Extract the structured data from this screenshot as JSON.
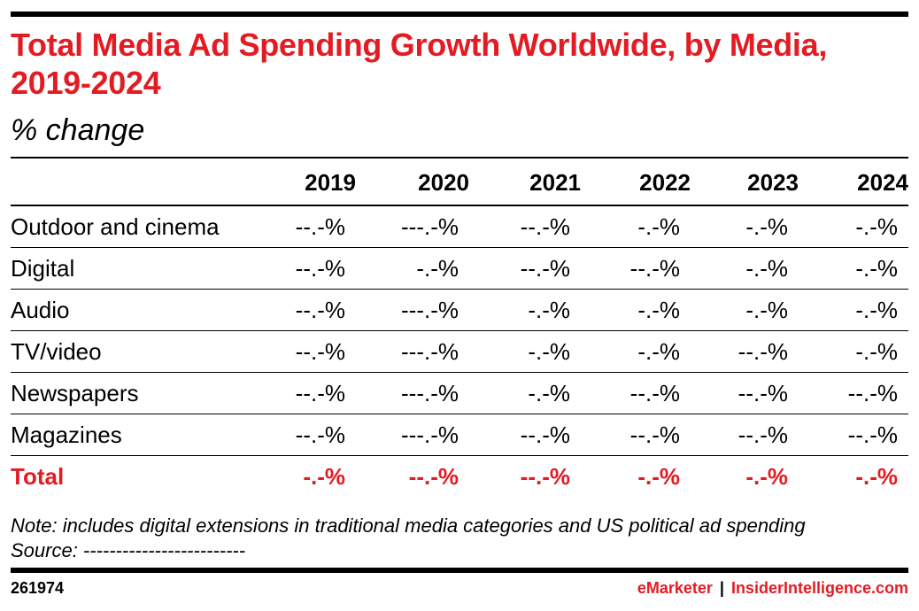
{
  "chart_data": {
    "type": "table",
    "title": "Total Media Ad Spending Growth Worldwide, by Media, 2019-2024",
    "subtitle": "% change",
    "columns": [
      "2019",
      "2020",
      "2021",
      "2022",
      "2023",
      "2024"
    ],
    "rows": [
      {
        "label": "Outdoor and cinema",
        "values": [
          "--.-%",
          "---.-%",
          "--.-%",
          "-.-%",
          "-.-%",
          "-.-%"
        ]
      },
      {
        "label": "Digital",
        "values": [
          "--.-%",
          "-.-%",
          "--.-%",
          "--.-%",
          "-.-%",
          "-.-%"
        ]
      },
      {
        "label": "Audio",
        "values": [
          "--.-%",
          "---.-%",
          "-.-%",
          "-.-%",
          "-.-%",
          "-.-%"
        ]
      },
      {
        "label": "TV/video",
        "values": [
          "--.-%",
          "---.-%",
          "-.-%",
          "-.-%",
          "--.-%",
          "-.-%"
        ]
      },
      {
        "label": "Newspapers",
        "values": [
          "--.-%",
          "---.-%",
          "-.-%",
          "--.-%",
          "--.-%",
          "--.-%"
        ]
      },
      {
        "label": "Magazines",
        "values": [
          "--.-%",
          "---.-%",
          "--.-%",
          "--.-%",
          "--.-%",
          "--.-%"
        ]
      },
      {
        "label": "Total",
        "values": [
          "-.-%",
          "--.-%",
          "--.-%",
          "-.-%",
          "-.-%",
          "-.-%"
        ]
      }
    ],
    "note": "Note: includes digital extensions in traditional media categories and US political ad spending",
    "source": "Source: -------------------------"
  },
  "footer": {
    "id": "261974",
    "brand": "eMarketer",
    "separator": "|",
    "site": "InsiderIntelligence.com"
  },
  "colors": {
    "accent": "#e31b23",
    "text": "#000000"
  }
}
